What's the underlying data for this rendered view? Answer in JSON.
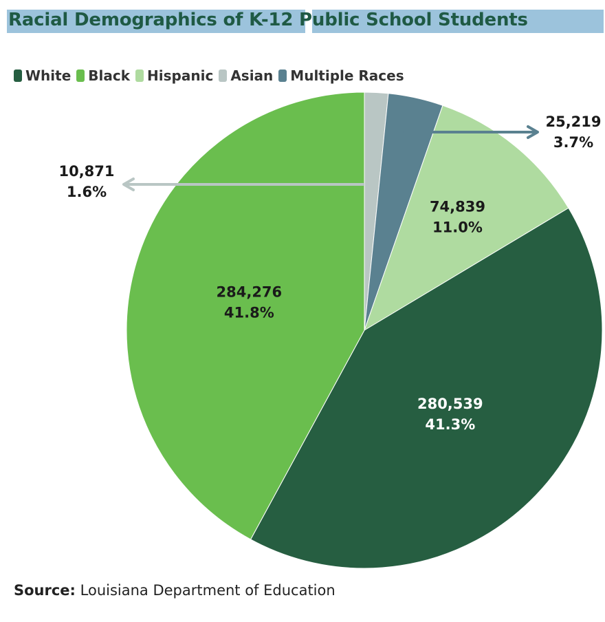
{
  "title": "Racial Demographics of K-12 Public School Students",
  "source": {
    "label": "Source:",
    "text": "Louisiana Department of Education"
  },
  "colors": {
    "title_text": "#1f5a44",
    "title_highlight": "#9cc3dc",
    "label_dark": "#1a1a1a",
    "label_light": "#ffffff"
  },
  "chart_data": {
    "type": "pie",
    "start": "12 o'clock",
    "direction": "clockwise",
    "legend_position": "top-left",
    "slices": [
      {
        "name": "Asian",
        "value": 10871,
        "percent": "1.6%",
        "value_label": "10,871",
        "color": "#b9c6c4",
        "label": "outside-left-arrow"
      },
      {
        "name": "Multiple Races",
        "value": 25219,
        "percent": "3.7%",
        "value_label": "25,219",
        "color": "#5a8190",
        "label": "outside-right-arrow"
      },
      {
        "name": "Hispanic",
        "value": 74839,
        "percent": "11.0%",
        "value_label": "74,839",
        "color": "#afdba0",
        "label": "inside"
      },
      {
        "name": "White",
        "value": 280539,
        "percent": "41.3%",
        "value_label": "280,539",
        "color": "#265e41",
        "label": "inside"
      },
      {
        "name": "Black",
        "value": 284276,
        "percent": "41.8%",
        "value_label": "284,276",
        "color": "#6abe4e",
        "label": "inside"
      }
    ],
    "legend": [
      {
        "name": "White",
        "color": "#265e41"
      },
      {
        "name": "Black",
        "color": "#6abe4e"
      },
      {
        "name": "Hispanic",
        "color": "#afdba0"
      },
      {
        "name": "Asian",
        "color": "#b9c6c4"
      },
      {
        "name": "Multiple Races",
        "color": "#5a8190"
      }
    ]
  }
}
